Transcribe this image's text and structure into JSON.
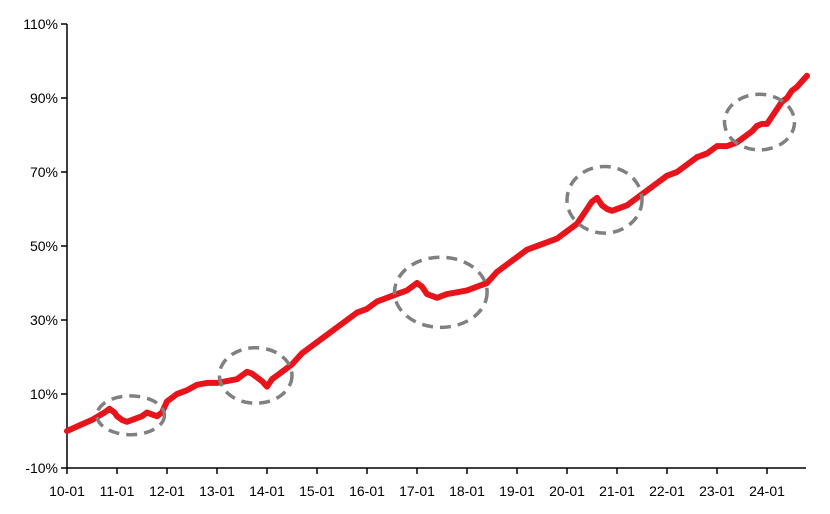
{
  "chart_data": {
    "type": "line",
    "title": "",
    "xlabel": "",
    "ylabel": "",
    "x_ticks": [
      "10-01",
      "11-01",
      "12-01",
      "13-01",
      "14-01",
      "15-01",
      "16-01",
      "17-01",
      "18-01",
      "19-01",
      "20-01",
      "21-01",
      "22-01",
      "23-01",
      "24-01"
    ],
    "y_ticks": [
      -10,
      10,
      30,
      50,
      70,
      90,
      110
    ],
    "y_tick_labels": [
      "-10%",
      "10%",
      "30%",
      "50%",
      "70%",
      "90%",
      "110%"
    ],
    "ylim": [
      -10,
      110
    ],
    "xlim": [
      2010.0,
      2024.8
    ],
    "grid": false,
    "colors": {
      "series": "#e8141c",
      "highlight": "#808080",
      "axis": "#000000"
    },
    "series": [
      {
        "x": [
          2010.0,
          2010.25,
          2010.5,
          2010.75,
          2010.85,
          2010.95,
          2011.0,
          2011.1,
          2011.2,
          2011.3,
          2011.4,
          2011.5,
          2011.6,
          2011.7,
          2011.8,
          2011.9,
          2012.0,
          2012.2,
          2012.4,
          2012.6,
          2012.8,
          2013.0,
          2013.2,
          2013.4,
          2013.5,
          2013.6,
          2013.7,
          2013.8,
          2013.9,
          2014.0,
          2014.1,
          2014.2,
          2014.3,
          2014.5,
          2014.7,
          2014.9,
          2015.0,
          2015.2,
          2015.4,
          2015.6,
          2015.8,
          2016.0,
          2016.2,
          2016.4,
          2016.6,
          2016.8,
          2016.9,
          2017.0,
          2017.1,
          2017.2,
          2017.4,
          2017.6,
          2017.8,
          2018.0,
          2018.2,
          2018.4,
          2018.6,
          2018.8,
          2019.0,
          2019.2,
          2019.4,
          2019.6,
          2019.8,
          2020.0,
          2020.1,
          2020.2,
          2020.3,
          2020.4,
          2020.5,
          2020.6,
          2020.7,
          2020.8,
          2020.9,
          2021.0,
          2021.2,
          2021.4,
          2021.6,
          2021.8,
          2022.0,
          2022.2,
          2022.4,
          2022.6,
          2022.8,
          2023.0,
          2023.2,
          2023.4,
          2023.5,
          2023.6,
          2023.7,
          2023.8,
          2023.9,
          2024.0,
          2024.1,
          2024.2,
          2024.3,
          2024.4,
          2024.5,
          2024.6,
          2024.7,
          2024.8
        ],
        "values": [
          0,
          1.5,
          3,
          5,
          6,
          5,
          4,
          3,
          2.5,
          3,
          3.5,
          4,
          5,
          4.5,
          4,
          5,
          8,
          10,
          11,
          12.5,
          13,
          13,
          13.5,
          14,
          15,
          16,
          15.5,
          14.5,
          13.5,
          12,
          14,
          15,
          16,
          18,
          21,
          23,
          24,
          26,
          28,
          30,
          32,
          33,
          35,
          36,
          37,
          38,
          39,
          40,
          39,
          37,
          36,
          37,
          37.5,
          38,
          39,
          40,
          43,
          45,
          47,
          49,
          50,
          51,
          52,
          54,
          55,
          56,
          58,
          60,
          62,
          63,
          61,
          60,
          59.5,
          60,
          61,
          63,
          65,
          67,
          69,
          70,
          72,
          74,
          75,
          77,
          77,
          78,
          79,
          80,
          81,
          82.5,
          83,
          83,
          85,
          87,
          89,
          90,
          92,
          93,
          94.5,
          96
        ]
      }
    ],
    "highlights": [
      {
        "x_range": [
          2010.6,
          2011.95
        ],
        "y_range": [
          -1,
          9.5
        ]
      },
      {
        "x_range": [
          2013.05,
          2014.5
        ],
        "y_range": [
          7.5,
          22.5
        ]
      },
      {
        "x_range": [
          2016.55,
          2018.4
        ],
        "y_range": [
          28,
          47
        ]
      },
      {
        "x_range": [
          2020.0,
          2021.5
        ],
        "y_range": [
          53.5,
          71.5
        ]
      },
      {
        "x_range": [
          2023.15,
          2024.55
        ],
        "y_range": [
          76,
          91
        ]
      }
    ]
  }
}
